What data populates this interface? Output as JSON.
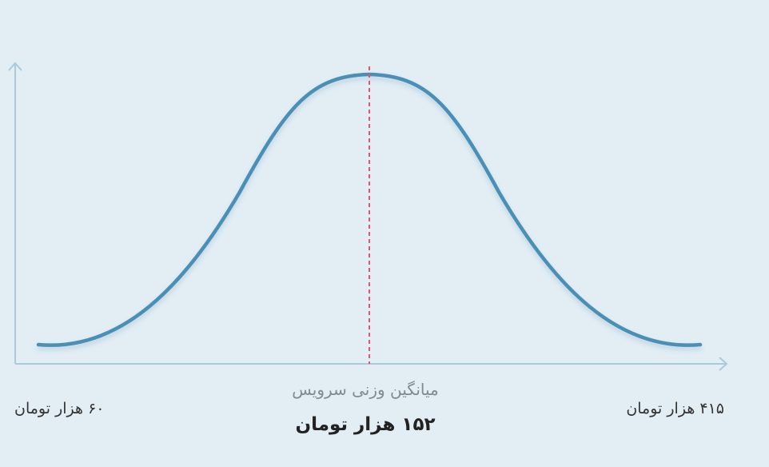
{
  "labels": {
    "min_price": "۶۰ هزار تومان",
    "max_price": "۴۱۵ هزار تومان",
    "average_caption": "میانگین وزنی سرویس",
    "average_price": "۱۵۲ هزار تومان"
  }
}
